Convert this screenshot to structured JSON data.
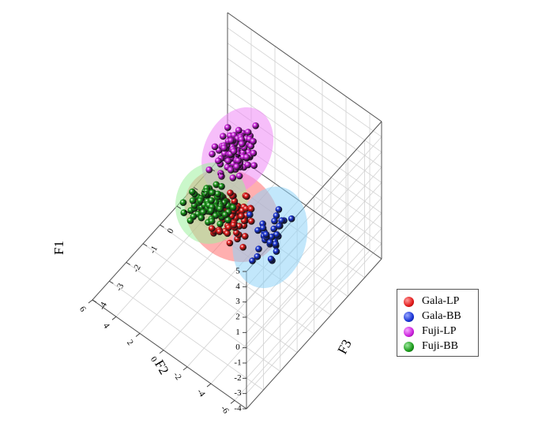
{
  "chart_data": {
    "type": "scatter",
    "projection": "3d",
    "axes": {
      "x": {
        "label": "F2",
        "range": [
          -7,
          6
        ],
        "ticks": [
          "-6",
          "-4",
          "-2",
          "0",
          "2",
          "4",
          "6"
        ]
      },
      "y": {
        "label": "F3",
        "range": [
          -4,
          4
        ],
        "ticks": [
          "-4",
          "-3",
          "-2",
          "-1",
          "0",
          "1",
          "2",
          "3",
          "4"
        ]
      },
      "z": {
        "label": "F1",
        "range": [
          -4,
          5
        ],
        "ticks": [
          "-4",
          "-3",
          "-2",
          "-1",
          "0",
          "1",
          "2",
          "3",
          "4",
          "5"
        ]
      }
    },
    "grid": true,
    "legend_position": "bottom-right",
    "series": [
      {
        "name": "Gala-LP",
        "color": "#e21a1a",
        "ellipse_color": "#ff6d6d",
        "ellipse": {
          "x": -1.8,
          "y": -1.2,
          "z": 2.4,
          "rx": 3.4,
          "ry": 1.5,
          "rz": 1.6
        }
      },
      {
        "name": "Gala-BB",
        "color": "#1a35d6",
        "ellipse_color": "#8fd3f7",
        "ellipse": {
          "x": -5.0,
          "y": -1.2,
          "z": 2.7,
          "rx": 2.2,
          "ry": 1.6,
          "rz": 2.4
        }
      },
      {
        "name": "Fuji-LP",
        "color": "#cc22dd",
        "ellipse_color": "#ee88f6",
        "ellipse": {
          "x": 1.6,
          "y": 1.5,
          "z": 1.4,
          "rx": 2.0,
          "ry": 1.6,
          "rz": 1.8
        }
      },
      {
        "name": "Fuji-BB",
        "color": "#1a9a1a",
        "ellipse_color": "#9ef09e",
        "ellipse": {
          "x": 2.8,
          "y": 0.8,
          "z": -1.8,
          "rx": 2.3,
          "ry": 1.4,
          "rz": 1.6
        }
      }
    ]
  }
}
